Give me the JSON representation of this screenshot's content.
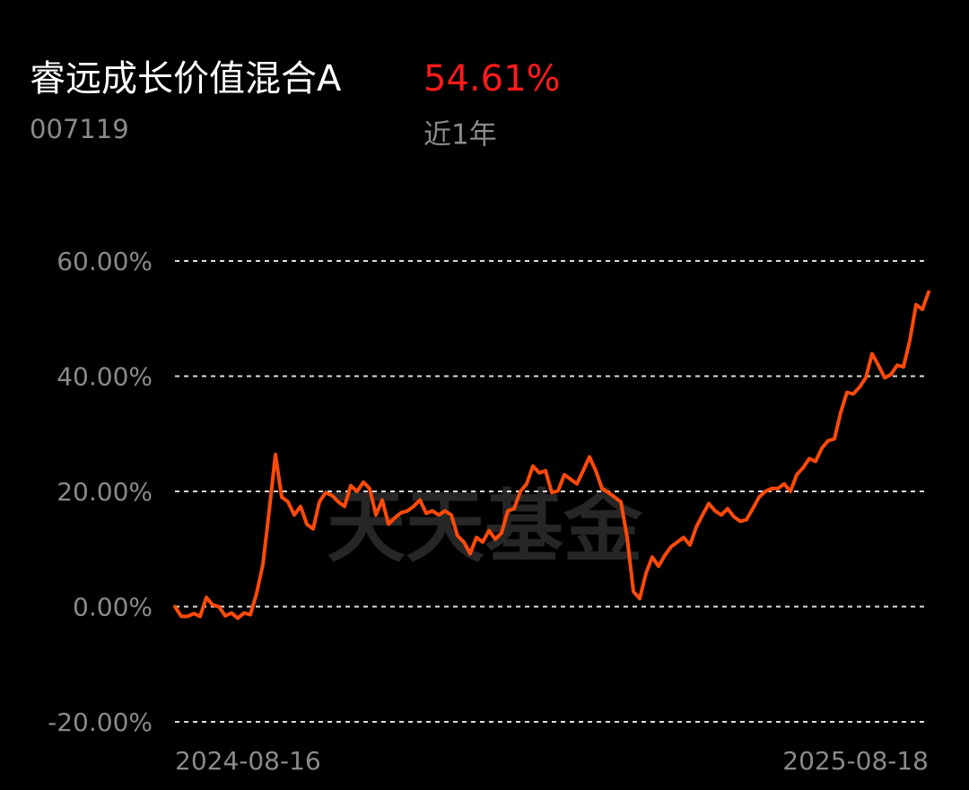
{
  "header": {
    "title": "睿远成长价值混合A",
    "return": "54.61%",
    "code": "007119",
    "period": "近1年"
  },
  "chart_data": {
    "type": "line",
    "watermark": "天天基金",
    "categories": [
      "2024-08-16",
      null,
      null,
      null,
      null,
      null,
      null,
      null,
      null,
      null,
      null,
      null,
      null,
      null,
      null,
      null,
      null,
      null,
      null,
      null,
      null,
      null,
      null,
      null,
      null,
      null,
      null,
      null,
      null,
      null,
      null,
      null,
      null,
      null,
      null,
      null,
      null,
      null,
      null,
      null,
      null,
      null,
      null,
      null,
      null,
      null,
      null,
      null,
      null,
      null,
      null,
      null,
      null,
      null,
      null,
      null,
      null,
      null,
      null,
      null,
      null,
      null,
      null,
      null,
      null,
      null,
      null,
      null,
      null,
      null,
      null,
      null,
      null,
      null,
      null,
      null,
      null,
      null,
      null,
      null,
      null,
      null,
      null,
      null,
      null,
      null,
      null,
      null,
      null,
      null,
      null,
      null,
      null,
      null,
      null,
      null,
      null,
      null,
      null,
      null,
      null,
      null,
      null,
      null,
      null,
      null,
      null,
      null,
      null,
      null,
      null,
      null,
      null,
      null,
      null,
      null,
      null,
      null,
      null,
      null,
      "2025-08-18"
    ],
    "values": [
      0,
      -1.7,
      -1.7,
      -1.2,
      -1.7,
      1.6,
      0.3,
      0,
      -1.6,
      -1.1,
      -2,
      -1.1,
      -1.4,
      2.3,
      7.3,
      16.6,
      26.4,
      19,
      18.2,
      15.9,
      17.4,
      14.3,
      13.5,
      18.2,
      19.8,
      19.3,
      18.2,
      17.4,
      21,
      20,
      21.6,
      20.5,
      15.9,
      18.5,
      14.3,
      15.4,
      16.3,
      16.6,
      17.4,
      18.5,
      16.2,
      16.6,
      15.9,
      16.6,
      15.9,
      12.3,
      11.2,
      9.2,
      12,
      11.2,
      13.2,
      11.7,
      12.8,
      16.6,
      17,
      20,
      21.3,
      24.4,
      23.2,
      23.6,
      19.8,
      20.1,
      22.9,
      22.1,
      21.3,
      23.6,
      26,
      23.6,
      20.5,
      19.8,
      19,
      18.2,
      12,
      2.6,
      1.4,
      5.8,
      8.6,
      7,
      8.9,
      10.4,
      11.2,
      12,
      10.7,
      13.8,
      15.9,
      17.9,
      16.6,
      15.9,
      17,
      15.6,
      14.8,
      15.1,
      17,
      19,
      20,
      20.5,
      20.5,
      21.3,
      20,
      22.9,
      24.1,
      25.7,
      25.2,
      27.5,
      28.8,
      29.1,
      33.7,
      37.2,
      36.9,
      38.1,
      39.7,
      43.9,
      41.9,
      39.7,
      40.3,
      41.9,
      41.6,
      46.2,
      52.4,
      51.6,
      54.61
    ],
    "color": "#ff4a0a",
    "ylim": [
      -20,
      60
    ],
    "yticks": [
      {
        "value": -20,
        "label": "-20.00%"
      },
      {
        "value": 0,
        "label": "0.00%"
      },
      {
        "value": 20,
        "label": "20.00%"
      },
      {
        "value": 40,
        "label": "40.00%"
      },
      {
        "value": 60,
        "label": "60.00%"
      }
    ],
    "grid": true
  }
}
